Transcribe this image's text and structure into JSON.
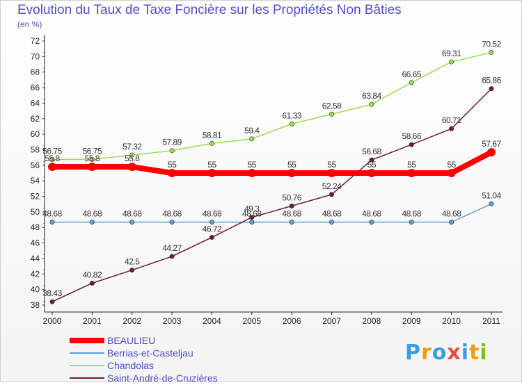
{
  "chart_data": {
    "type": "line",
    "title": "Evolution du Taux de Taxe Foncière sur les Propriétés Non Bâties",
    "unit_label": "(en %)",
    "xlabel": "",
    "ylabel": "",
    "ylim": [
      38,
      72
    ],
    "yticks": [
      38,
      40,
      42,
      44,
      46,
      48,
      50,
      52,
      54,
      56,
      58,
      60,
      62,
      64,
      66,
      68,
      70,
      72
    ],
    "categories": [
      "2000",
      "2001",
      "2002",
      "2003",
      "2004",
      "2005",
      "2006",
      "2007",
      "2008",
      "2009",
      "2010",
      "2011"
    ],
    "series": [
      {
        "name": "BEAULIEU",
        "color": "#ff0000",
        "emphasis": true,
        "values": [
          55.8,
          55.8,
          55.8,
          55,
          55,
          55,
          55,
          55,
          55,
          55,
          55,
          57.67
        ],
        "labels": [
          "55.8",
          "55.8",
          "55.8",
          "55",
          "55",
          "55",
          "55",
          "55",
          "55",
          "55",
          "55",
          "57.67"
        ]
      },
      {
        "name": "Berrias-et-Casteljau",
        "color": "#5f9fd5",
        "emphasis": false,
        "values": [
          48.68,
          48.68,
          48.68,
          48.68,
          48.68,
          48.68,
          48.68,
          48.68,
          48.68,
          48.68,
          48.68,
          51.04
        ],
        "labels": [
          "48.68",
          "48.68",
          "48.68",
          "48.68",
          "48.68",
          "48.68",
          "48.68",
          "48.68",
          "48.68",
          "48.68",
          "48.68",
          "51.04"
        ]
      },
      {
        "name": "Chandolas",
        "color": "#99dd55",
        "emphasis": false,
        "values": [
          56.75,
          56.75,
          57.32,
          57.89,
          58.81,
          59.4,
          61.33,
          62.58,
          63.84,
          66.65,
          69.31,
          70.52
        ],
        "labels": [
          "56.75",
          "56.75",
          "57.32",
          "57.89",
          "58.81",
          "59.4",
          "61.33",
          "62.58",
          "63.84",
          "66.65",
          "69.31",
          "70.52"
        ]
      },
      {
        "name": "Saint-André-de-Cruzières",
        "color": "#6b1f2a",
        "emphasis": false,
        "values": [
          38.43,
          40.82,
          42.5,
          44.27,
          46.72,
          49.3,
          50.76,
          52.24,
          56.68,
          58.66,
          60.71,
          65.86
        ],
        "labels": [
          "38.43",
          "40.82",
          "42.5",
          "44.27",
          "46.72",
          "49.3",
          "50.76",
          "52.24",
          "56.68",
          "58.66",
          "60.71",
          "65.86"
        ]
      }
    ],
    "legend_position": "bottom-left",
    "grid": false
  },
  "logo": {
    "letters": [
      "P",
      "r",
      "o",
      "x",
      "i",
      "t",
      "i"
    ],
    "colors": [
      "#3a9fe0",
      "#f39c12",
      "#3a9fe0",
      "#e74c3c",
      "#3a9fe0",
      "#f39c12",
      "#7cbf2c"
    ]
  }
}
